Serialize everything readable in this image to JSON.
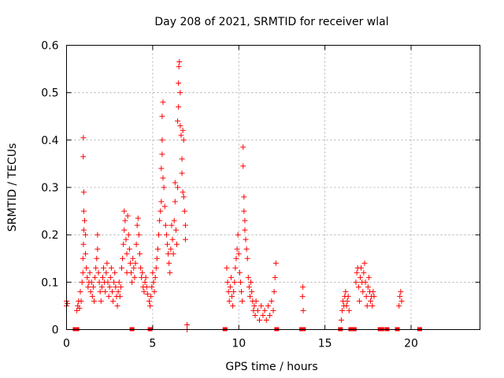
{
  "chart_data": {
    "type": "scatter",
    "title": "Day 208 of 2021, SRMTID for receiver wlal",
    "xlabel": "GPS time / hours",
    "ylabel": "SRMTID / TECUs",
    "xlim": [
      0,
      24
    ],
    "ylim": [
      0,
      0.6
    ],
    "xticks": [
      0,
      5,
      10,
      15,
      20
    ],
    "yticks": [
      0,
      0.1,
      0.2,
      0.3,
      0.4,
      0.5,
      0.6
    ],
    "xtick_labels": [
      "0",
      "5",
      "10",
      "15",
      "20"
    ],
    "ytick_labels": [
      "0",
      "0.1",
      "0.2",
      "0.3",
      "0.4",
      "0.5",
      "0.6"
    ],
    "grid": true,
    "marker": "+",
    "marker_color": "#ff0000",
    "series": [
      {
        "name": "SRMTID",
        "points": [
          [
            0.0,
            0.05
          ],
          [
            0.0,
            0.06
          ],
          [
            0.05,
            0.055
          ],
          [
            0.6,
            0.04
          ],
          [
            0.65,
            0.05
          ],
          [
            0.7,
            0.06
          ],
          [
            0.75,
            0.045
          ],
          [
            0.8,
            0.08
          ],
          [
            0.85,
            0.06
          ],
          [
            0.9,
            0.1
          ],
          [
            0.95,
            0.12
          ],
          [
            0.95,
            0.15
          ],
          [
            0.98,
            0.18
          ],
          [
            1.0,
            0.21
          ],
          [
            1.0,
            0.25
          ],
          [
            1.0,
            0.29
          ],
          [
            0.97,
            0.365
          ],
          [
            0.98,
            0.405
          ],
          [
            1.05,
            0.23
          ],
          [
            1.1,
            0.2
          ],
          [
            1.1,
            0.16
          ],
          [
            1.15,
            0.13
          ],
          [
            1.2,
            0.11
          ],
          [
            1.25,
            0.09
          ],
          [
            1.3,
            0.1
          ],
          [
            1.35,
            0.12
          ],
          [
            1.4,
            0.08
          ],
          [
            1.45,
            0.1
          ],
          [
            1.5,
            0.07
          ],
          [
            1.55,
            0.09
          ],
          [
            1.6,
            0.06
          ],
          [
            1.65,
            0.11
          ],
          [
            1.7,
            0.13
          ],
          [
            1.75,
            0.15
          ],
          [
            1.8,
            0.2
          ],
          [
            1.8,
            0.17
          ],
          [
            1.85,
            0.12
          ],
          [
            1.9,
            0.1
          ],
          [
            1.95,
            0.08
          ],
          [
            2.0,
            0.06
          ],
          [
            2.05,
            0.09
          ],
          [
            2.1,
            0.11
          ],
          [
            2.15,
            0.13
          ],
          [
            2.2,
            0.1
          ],
          [
            2.25,
            0.08
          ],
          [
            2.3,
            0.12
          ],
          [
            2.35,
            0.14
          ],
          [
            2.4,
            0.1
          ],
          [
            2.45,
            0.07
          ],
          [
            2.5,
            0.09
          ],
          [
            2.55,
            0.11
          ],
          [
            2.6,
            0.13
          ],
          [
            2.65,
            0.08
          ],
          [
            2.7,
            0.06
          ],
          [
            2.75,
            0.1
          ],
          [
            2.8,
            0.12
          ],
          [
            2.85,
            0.09
          ],
          [
            2.9,
            0.07
          ],
          [
            2.95,
            0.05
          ],
          [
            3.0,
            0.08
          ],
          [
            3.05,
            0.1
          ],
          [
            3.1,
            0.07
          ],
          [
            3.15,
            0.09
          ],
          [
            3.2,
            0.13
          ],
          [
            3.25,
            0.15
          ],
          [
            3.3,
            0.18
          ],
          [
            3.35,
            0.21
          ],
          [
            3.35,
            0.25
          ],
          [
            3.4,
            0.23
          ],
          [
            3.45,
            0.19
          ],
          [
            3.5,
            0.16
          ],
          [
            3.5,
            0.12
          ],
          [
            3.55,
            0.24
          ],
          [
            3.6,
            0.2
          ],
          [
            3.65,
            0.17
          ],
          [
            3.7,
            0.14
          ],
          [
            3.75,
            0.12
          ],
          [
            3.8,
            0.1
          ],
          [
            3.85,
            0.15
          ],
          [
            3.9,
            0.13
          ],
          [
            3.95,
            0.11
          ],
          [
            4.0,
            0.14
          ],
          [
            4.05,
            0.18
          ],
          [
            4.1,
            0.22
          ],
          [
            4.15,
            0.235
          ],
          [
            4.2,
            0.2
          ],
          [
            4.25,
            0.16
          ],
          [
            4.3,
            0.13
          ],
          [
            4.35,
            0.11
          ],
          [
            4.4,
            0.12
          ],
          [
            4.45,
            0.09
          ],
          [
            4.5,
            0.08
          ],
          [
            4.55,
            0.1
          ],
          [
            4.6,
            0.11
          ],
          [
            4.65,
            0.09
          ],
          [
            4.7,
            0.075
          ],
          [
            4.8,
            0.06
          ],
          [
            4.85,
            0.05
          ],
          [
            4.9,
            0.07
          ],
          [
            4.95,
            0.09
          ],
          [
            5.0,
            0.12
          ],
          [
            5.05,
            0.1
          ],
          [
            5.1,
            0.08
          ],
          [
            5.15,
            0.11
          ],
          [
            5.2,
            0.13
          ],
          [
            5.25,
            0.15
          ],
          [
            5.3,
            0.17
          ],
          [
            5.35,
            0.2
          ],
          [
            5.4,
            0.23
          ],
          [
            5.45,
            0.25
          ],
          [
            5.5,
            0.27
          ],
          [
            5.5,
            0.34
          ],
          [
            5.55,
            0.4
          ],
          [
            5.55,
            0.37
          ],
          [
            5.55,
            0.45
          ],
          [
            5.6,
            0.48
          ],
          [
            5.6,
            0.32
          ],
          [
            5.65,
            0.3
          ],
          [
            5.7,
            0.26
          ],
          [
            5.75,
            0.22
          ],
          [
            5.8,
            0.2
          ],
          [
            5.85,
            0.18
          ],
          [
            5.9,
            0.16
          ],
          [
            5.95,
            0.14
          ],
          [
            6.0,
            0.12
          ],
          [
            6.05,
            0.17
          ],
          [
            6.1,
            0.22
          ],
          [
            6.15,
            0.19
          ],
          [
            6.2,
            0.16
          ],
          [
            6.25,
            0.23
          ],
          [
            6.3,
            0.27
          ],
          [
            6.3,
            0.31
          ],
          [
            6.35,
            0.21
          ],
          [
            6.4,
            0.18
          ],
          [
            6.45,
            0.3
          ],
          [
            6.45,
            0.44
          ],
          [
            6.5,
            0.47
          ],
          [
            6.5,
            0.52
          ],
          [
            6.52,
            0.555
          ],
          [
            6.55,
            0.565
          ],
          [
            6.6,
            0.5
          ],
          [
            6.6,
            0.43
          ],
          [
            6.65,
            0.41
          ],
          [
            6.7,
            0.36
          ],
          [
            6.7,
            0.33
          ],
          [
            6.75,
            0.29
          ],
          [
            6.75,
            0.42
          ],
          [
            6.8,
            0.4
          ],
          [
            6.8,
            0.28
          ],
          [
            6.85,
            0.25
          ],
          [
            6.9,
            0.22
          ],
          [
            6.9,
            0.19
          ],
          [
            7.0,
            0.01
          ],
          [
            7.0,
            0.0
          ],
          [
            9.3,
            0.13
          ],
          [
            9.35,
            0.1
          ],
          [
            9.4,
            0.08
          ],
          [
            9.45,
            0.06
          ],
          [
            9.5,
            0.09
          ],
          [
            9.55,
            0.11
          ],
          [
            9.6,
            0.07
          ],
          [
            9.65,
            0.05
          ],
          [
            9.7,
            0.08
          ],
          [
            9.75,
            0.1
          ],
          [
            9.8,
            0.13
          ],
          [
            9.85,
            0.15
          ],
          [
            9.9,
            0.17
          ],
          [
            9.95,
            0.2
          ],
          [
            10.0,
            0.16
          ],
          [
            10.05,
            0.12
          ],
          [
            10.1,
            0.1
          ],
          [
            10.15,
            0.08
          ],
          [
            10.2,
            0.06
          ],
          [
            10.25,
            0.385
          ],
          [
            10.25,
            0.345
          ],
          [
            10.3,
            0.28
          ],
          [
            10.3,
            0.25
          ],
          [
            10.35,
            0.23
          ],
          [
            10.35,
            0.21
          ],
          [
            10.4,
            0.19
          ],
          [
            10.45,
            0.17
          ],
          [
            10.5,
            0.15
          ],
          [
            10.55,
            0.11
          ],
          [
            10.6,
            0.09
          ],
          [
            10.65,
            0.07
          ],
          [
            10.7,
            0.1
          ],
          [
            10.75,
            0.08
          ],
          [
            10.8,
            0.06
          ],
          [
            10.85,
            0.04
          ],
          [
            10.9,
            0.05
          ],
          [
            10.95,
            0.03
          ],
          [
            11.0,
            0.06
          ],
          [
            11.1,
            0.04
          ],
          [
            11.2,
            0.02
          ],
          [
            11.3,
            0.05
          ],
          [
            11.4,
            0.03
          ],
          [
            11.5,
            0.04
          ],
          [
            11.6,
            0.02
          ],
          [
            11.7,
            0.05
          ],
          [
            11.8,
            0.03
          ],
          [
            11.9,
            0.06
          ],
          [
            12.0,
            0.04
          ],
          [
            12.05,
            0.08
          ],
          [
            12.1,
            0.11
          ],
          [
            12.15,
            0.14
          ],
          [
            13.7,
            0.07
          ],
          [
            13.72,
            0.09
          ],
          [
            13.74,
            0.04
          ],
          [
            15.95,
            0.02
          ],
          [
            16.0,
            0.04
          ],
          [
            16.05,
            0.06
          ],
          [
            16.1,
            0.05
          ],
          [
            16.15,
            0.07
          ],
          [
            16.2,
            0.08
          ],
          [
            16.25,
            0.05
          ],
          [
            16.3,
            0.06
          ],
          [
            16.35,
            0.07
          ],
          [
            16.4,
            0.04
          ],
          [
            16.8,
            0.1
          ],
          [
            16.85,
            0.12
          ],
          [
            16.9,
            0.13
          ],
          [
            16.95,
            0.09
          ],
          [
            17.0,
            0.06
          ],
          [
            17.05,
            0.11
          ],
          [
            17.1,
            0.13
          ],
          [
            17.15,
            0.1
          ],
          [
            17.2,
            0.08
          ],
          [
            17.25,
            0.12
          ],
          [
            17.3,
            0.14
          ],
          [
            17.35,
            0.1
          ],
          [
            17.4,
            0.07
          ],
          [
            17.45,
            0.05
          ],
          [
            17.5,
            0.09
          ],
          [
            17.55,
            0.11
          ],
          [
            17.6,
            0.08
          ],
          [
            17.65,
            0.06
          ],
          [
            17.7,
            0.07
          ],
          [
            17.75,
            0.05
          ],
          [
            17.8,
            0.08
          ],
          [
            17.85,
            0.07
          ],
          [
            19.3,
            0.05
          ],
          [
            19.35,
            0.07
          ],
          [
            19.4,
            0.08
          ],
          [
            19.45,
            0.06
          ]
        ]
      }
    ],
    "zero_markers_x": [
      0.5,
      0.6,
      3.8,
      4.85,
      9.2,
      12.2,
      13.65,
      13.75,
      15.9,
      16.5,
      16.6,
      16.7,
      18.2,
      18.3,
      18.6,
      19.2,
      20.5
    ]
  }
}
